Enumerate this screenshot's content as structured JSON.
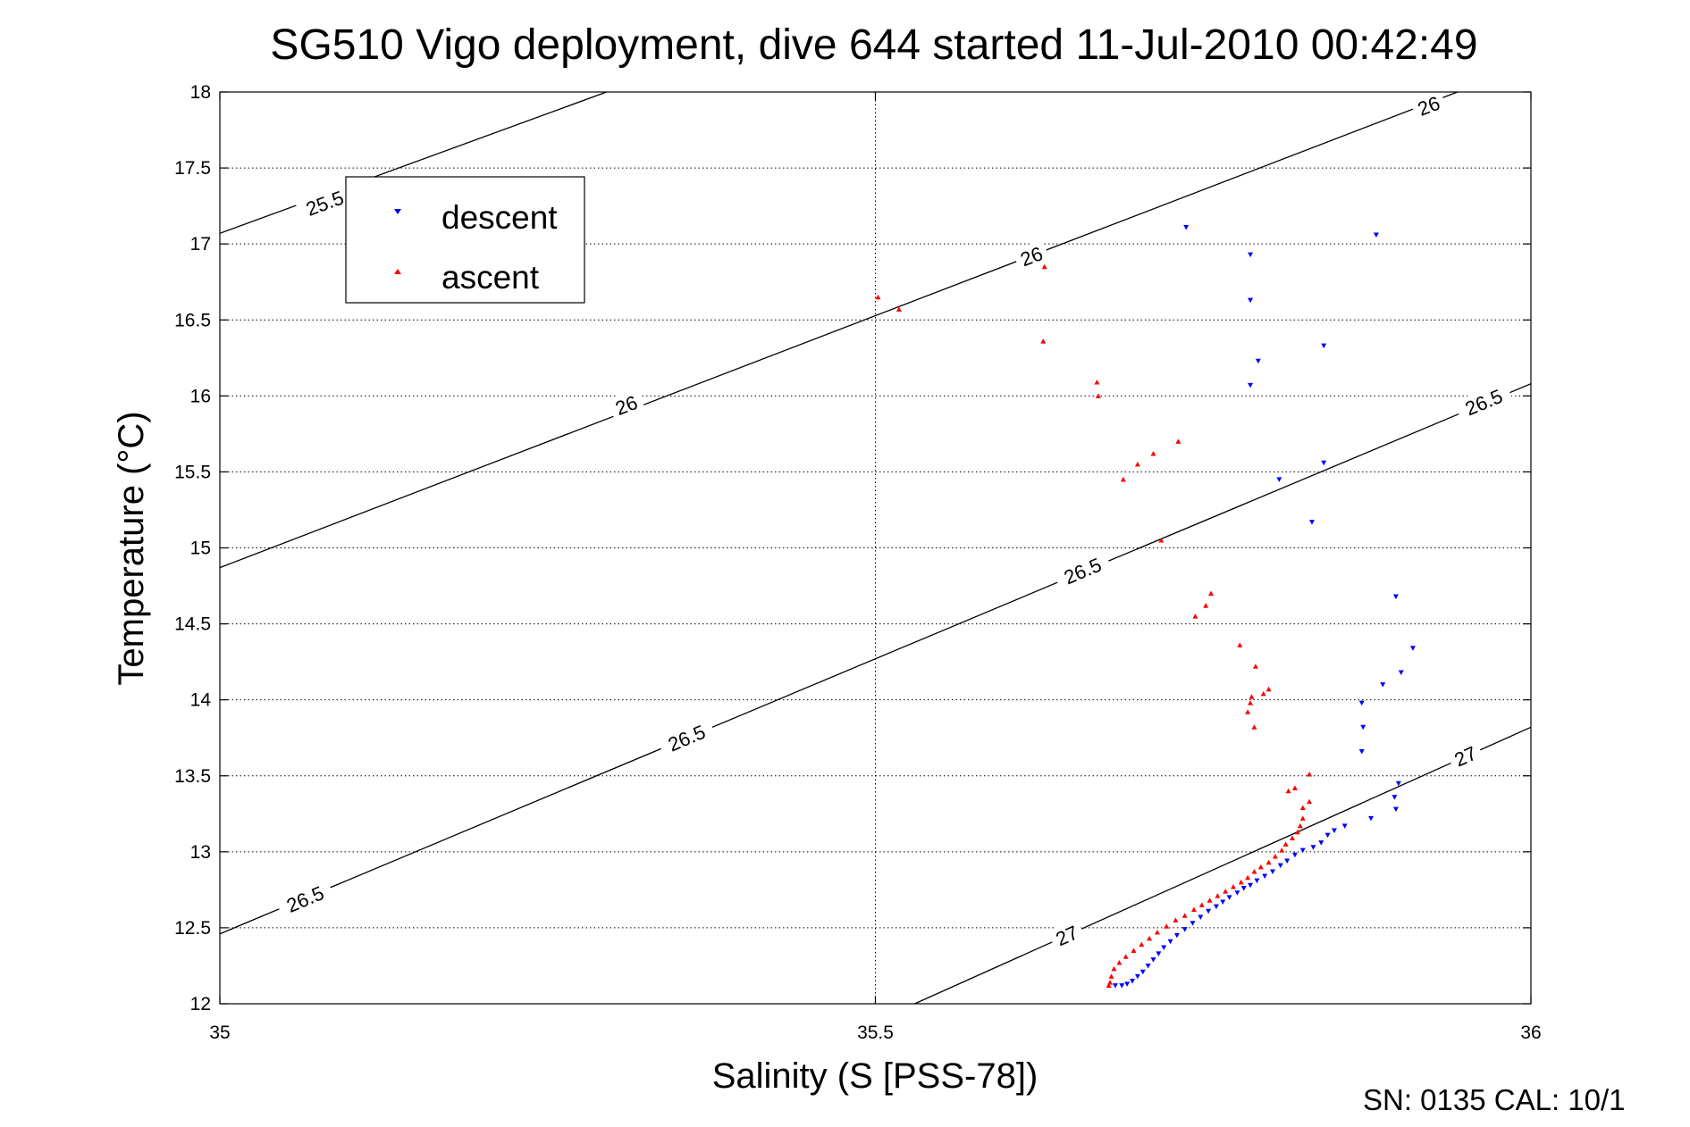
{
  "chart_data": {
    "type": "scatter",
    "title": "SG510 Vigo deployment, dive 644 started 11-Jul-2010 00:42:49",
    "xlabel": "Salinity (S [PSS-78])",
    "ylabel": "Temperature (°C)",
    "xlim": [
      35,
      36
    ],
    "ylim": [
      12,
      18
    ],
    "x_ticks": [
      "35",
      "35.5",
      "36"
    ],
    "y_ticks": [
      "12",
      "12.5",
      "13",
      "13.5",
      "14",
      "14.5",
      "15",
      "15.5",
      "16",
      "16.5",
      "17",
      "17.5",
      "18"
    ],
    "grid": true,
    "legend_position": "top-left",
    "series": [
      {
        "name": "descent",
        "color": "#0000ff",
        "marker": "triangle-down",
        "points": [
          [
            35.737,
            17.11
          ],
          [
            35.786,
            16.93
          ],
          [
            35.882,
            17.06
          ],
          [
            35.786,
            16.63
          ],
          [
            35.842,
            16.33
          ],
          [
            35.792,
            16.23
          ],
          [
            35.786,
            16.07
          ],
          [
            35.808,
            15.45
          ],
          [
            35.842,
            15.56
          ],
          [
            35.833,
            15.17
          ],
          [
            35.897,
            14.68
          ],
          [
            35.91,
            14.34
          ],
          [
            35.887,
            14.1
          ],
          [
            35.901,
            14.18
          ],
          [
            35.871,
            13.98
          ],
          [
            35.872,
            13.82
          ],
          [
            35.871,
            13.66
          ],
          [
            35.899,
            13.45
          ],
          [
            35.896,
            13.36
          ],
          [
            35.897,
            13.28
          ],
          [
            35.878,
            13.22
          ],
          [
            35.858,
            13.17
          ],
          [
            35.85,
            13.14
          ],
          [
            35.845,
            13.11
          ],
          [
            35.84,
            13.06
          ],
          [
            35.834,
            13.03
          ],
          [
            35.826,
            13.01
          ],
          [
            35.82,
            12.98
          ],
          [
            35.814,
            12.94
          ],
          [
            35.809,
            12.91
          ],
          [
            35.803,
            12.87
          ],
          [
            35.797,
            12.84
          ],
          [
            35.791,
            12.81
          ],
          [
            35.786,
            12.78
          ],
          [
            35.781,
            12.76
          ],
          [
            35.776,
            12.73
          ],
          [
            35.77,
            12.7
          ],
          [
            35.765,
            12.67
          ],
          [
            35.76,
            12.64
          ],
          [
            35.754,
            12.61
          ],
          [
            35.748,
            12.57
          ],
          [
            35.742,
            12.53
          ],
          [
            35.736,
            12.49
          ],
          [
            35.73,
            12.45
          ],
          [
            35.725,
            12.41
          ],
          [
            35.72,
            12.37
          ],
          [
            35.716,
            12.33
          ],
          [
            35.712,
            12.29
          ],
          [
            35.708,
            12.25
          ],
          [
            35.704,
            12.21
          ],
          [
            35.7,
            12.18
          ],
          [
            35.696,
            12.15
          ],
          [
            35.692,
            12.13
          ],
          [
            35.688,
            12.12
          ],
          [
            35.683,
            12.12
          ]
        ]
      },
      {
        "name": "ascent",
        "color": "#ff0000",
        "marker": "triangle-up",
        "points": [
          [
            35.502,
            16.65
          ],
          [
            35.518,
            16.57
          ],
          [
            35.629,
            16.85
          ],
          [
            35.628,
            16.36
          ],
          [
            35.669,
            16.09
          ],
          [
            35.67,
            16.0
          ],
          [
            35.731,
            15.7
          ],
          [
            35.712,
            15.62
          ],
          [
            35.7,
            15.55
          ],
          [
            35.689,
            15.45
          ],
          [
            35.718,
            15.05
          ],
          [
            35.756,
            14.7
          ],
          [
            35.752,
            14.62
          ],
          [
            35.744,
            14.55
          ],
          [
            35.778,
            14.36
          ],
          [
            35.79,
            14.22
          ],
          [
            35.8,
            14.07
          ],
          [
            35.796,
            14.04
          ],
          [
            35.787,
            14.02
          ],
          [
            35.786,
            13.98
          ],
          [
            35.784,
            13.92
          ],
          [
            35.789,
            13.82
          ],
          [
            35.831,
            13.51
          ],
          [
            35.82,
            13.42
          ],
          [
            35.815,
            13.4
          ],
          [
            35.831,
            13.33
          ],
          [
            35.826,
            13.29
          ],
          [
            35.826,
            13.22
          ],
          [
            35.824,
            13.17
          ],
          [
            35.822,
            13.13
          ],
          [
            35.818,
            13.09
          ],
          [
            35.813,
            13.05
          ],
          [
            35.81,
            13.01
          ],
          [
            35.805,
            12.97
          ],
          [
            35.8,
            12.93
          ],
          [
            35.794,
            12.9
          ],
          [
            35.789,
            12.87
          ],
          [
            35.784,
            12.83
          ],
          [
            35.779,
            12.8
          ],
          [
            35.773,
            12.77
          ],
          [
            35.767,
            12.74
          ],
          [
            35.761,
            12.71
          ],
          [
            35.755,
            12.68
          ],
          [
            35.749,
            12.65
          ],
          [
            35.743,
            12.62
          ],
          [
            35.736,
            12.58
          ],
          [
            35.729,
            12.55
          ],
          [
            35.722,
            12.51
          ],
          [
            35.715,
            12.47
          ],
          [
            35.709,
            12.43
          ],
          [
            35.703,
            12.39
          ],
          [
            35.697,
            12.35
          ],
          [
            35.691,
            12.31
          ],
          [
            35.686,
            12.27
          ],
          [
            35.682,
            12.23
          ],
          [
            35.68,
            12.18
          ],
          [
            35.679,
            12.14
          ],
          [
            35.678,
            12.12
          ]
        ]
      }
    ],
    "contour_lines": [
      {
        "label": "25.5",
        "endpoints": [
          [
            35.0,
            17.07
          ],
          [
            35.295,
            18.0
          ]
        ],
        "label_positions": [
          [
            35.08,
            17.27
          ]
        ]
      },
      {
        "label": "26",
        "endpoints": [
          [
            35.0,
            14.87
          ],
          [
            35.944,
            18.0
          ]
        ],
        "label_positions": [
          [
            35.31,
            15.94
          ],
          [
            35.619,
            16.92
          ],
          [
            35.922,
            17.91
          ]
        ]
      },
      {
        "label": "26.5",
        "endpoints": [
          [
            35.0,
            12.46
          ],
          [
            36.0,
            16.08
          ]
        ],
        "label_positions": [
          [
            35.065,
            12.69
          ],
          [
            35.356,
            13.75
          ],
          [
            35.658,
            14.85
          ],
          [
            35.964,
            15.96
          ]
        ]
      },
      {
        "label": "27",
        "endpoints": [
          [
            35.53,
            12.0
          ],
          [
            36.0,
            13.82
          ]
        ],
        "label_positions": [
          [
            35.646,
            12.45
          ],
          [
            35.95,
            13.63
          ]
        ]
      }
    ],
    "footer": "SN: 0135  CAL: 10/1"
  }
}
